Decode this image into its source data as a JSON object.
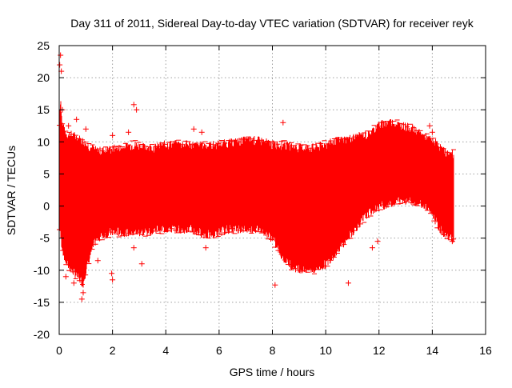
{
  "chart_data": {
    "type": "scatter",
    "title": "Day 311 of 2011, Sidereal Day-to-day VTEC variation (SDTVAR) for receiver reyk",
    "xlabel": "GPS time / hours",
    "ylabel": "SDTVAR / TECUs",
    "xlim": [
      0,
      16
    ],
    "ylim": [
      -20,
      25
    ],
    "xticks": [
      0,
      2,
      4,
      6,
      8,
      10,
      12,
      14,
      16
    ],
    "yticks": [
      -20,
      -15,
      -10,
      -5,
      0,
      5,
      10,
      15,
      20,
      25
    ],
    "grid": true,
    "series": [
      {
        "name": "SDTVAR",
        "color": "#ff0000",
        "marker": "+",
        "envelope": {
          "x": [
            0.0,
            0.05,
            0.1,
            0.2,
            0.3,
            0.5,
            0.7,
            0.9,
            1.0,
            1.2,
            1.4,
            1.6,
            2.0,
            2.4,
            2.8,
            3.2,
            3.6,
            4.0,
            4.4,
            4.8,
            5.2,
            5.6,
            6.0,
            6.4,
            6.8,
            7.2,
            7.6,
            8.0,
            8.4,
            8.8,
            9.2,
            9.6,
            10.0,
            10.4,
            10.8,
            11.2,
            11.6,
            12.0,
            12.4,
            12.8,
            13.2,
            13.6,
            14.0,
            14.2,
            14.4,
            14.6,
            14.8
          ],
          "upper": [
            12.0,
            17.0,
            13.0,
            11.5,
            11.0,
            11.0,
            10.5,
            10.0,
            9.5,
            9.0,
            8.5,
            8.5,
            8.8,
            9.0,
            9.5,
            9.0,
            9.0,
            9.5,
            9.5,
            9.5,
            9.3,
            9.3,
            9.5,
            9.7,
            10.0,
            10.2,
            10.0,
            9.5,
            9.5,
            9.0,
            9.0,
            9.0,
            9.5,
            10.0,
            10.3,
            10.7,
            11.0,
            12.5,
            13.0,
            12.5,
            12.0,
            11.0,
            10.0,
            9.5,
            8.5,
            8.0,
            8.0
          ],
          "lower": [
            -3.0,
            -4.5,
            -6.0,
            -8.0,
            -9.0,
            -10.0,
            -11.0,
            -12.0,
            -10.0,
            -7.0,
            -5.0,
            -4.5,
            -4.0,
            -4.0,
            -4.0,
            -4.0,
            -3.5,
            -3.5,
            -3.5,
            -3.5,
            -4.0,
            -4.5,
            -4.0,
            -3.5,
            -3.5,
            -3.5,
            -3.5,
            -5.0,
            -8.0,
            -9.5,
            -9.8,
            -9.8,
            -9.0,
            -7.0,
            -5.0,
            -3.0,
            -1.0,
            0.0,
            0.5,
            1.0,
            1.0,
            0.5,
            -1.0,
            -3.0,
            -4.0,
            -4.5,
            -5.0
          ]
        },
        "outliers": [
          {
            "x": 0.05,
            "y": 23.5
          },
          {
            "x": 0.02,
            "y": 22.0
          },
          {
            "x": 0.08,
            "y": 21.0
          },
          {
            "x": 0.12,
            "y": 15.0
          },
          {
            "x": 0.35,
            "y": 12.5
          },
          {
            "x": 0.65,
            "y": 13.5
          },
          {
            "x": 1.0,
            "y": 12.0
          },
          {
            "x": 2.8,
            "y": 15.8
          },
          {
            "x": 2.9,
            "y": 15.0
          },
          {
            "x": 2.0,
            "y": 11.0
          },
          {
            "x": 2.6,
            "y": 11.5
          },
          {
            "x": 5.05,
            "y": 12.0
          },
          {
            "x": 5.35,
            "y": 11.5
          },
          {
            "x": 8.4,
            "y": 13.0
          },
          {
            "x": 13.9,
            "y": 12.5
          },
          {
            "x": 14.0,
            "y": 11.5
          },
          {
            "x": 0.25,
            "y": -11.0
          },
          {
            "x": 0.55,
            "y": -12.0
          },
          {
            "x": 0.85,
            "y": -14.5
          },
          {
            "x": 0.9,
            "y": -13.5
          },
          {
            "x": 1.45,
            "y": -8.5
          },
          {
            "x": 1.65,
            "y": -4.0
          },
          {
            "x": 1.97,
            "y": -10.5
          },
          {
            "x": 2.0,
            "y": -11.5
          },
          {
            "x": 2.8,
            "y": -6.5
          },
          {
            "x": 3.1,
            "y": -9.0
          },
          {
            "x": 5.5,
            "y": -6.5
          },
          {
            "x": 6.5,
            "y": -3.5
          },
          {
            "x": 8.1,
            "y": -12.3
          },
          {
            "x": 10.85,
            "y": -12.0
          },
          {
            "x": 11.75,
            "y": -6.5
          },
          {
            "x": 11.95,
            "y": -5.5
          },
          {
            "x": 14.75,
            "y": -5.5
          }
        ]
      }
    ]
  }
}
